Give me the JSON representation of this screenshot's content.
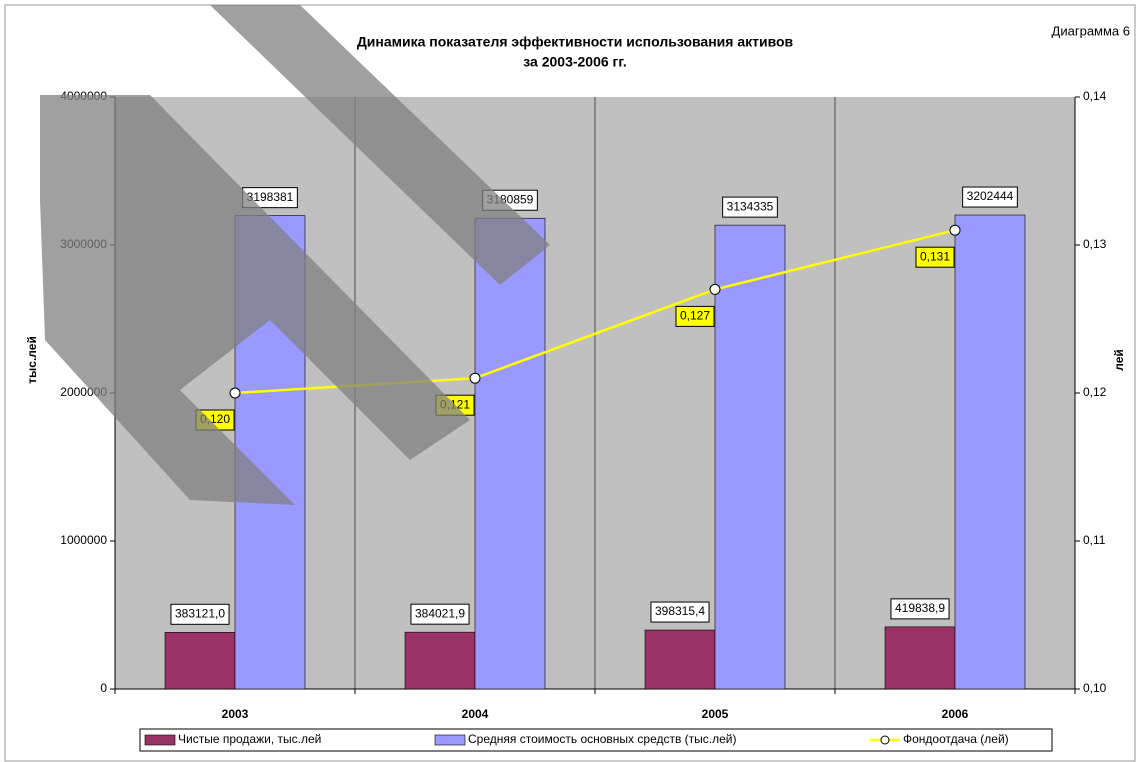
{
  "chart_data": {
    "type": "bar",
    "title": "Динамика показателя эффективности использования активов",
    "subtitle": "за 2003-2006 гг.",
    "annotation": "Диаграмма 6",
    "ylabel": "тыс.лей",
    "y2label": "лей",
    "categories": [
      "2003",
      "2004",
      "2005",
      "2006"
    ],
    "series": [
      {
        "name": "Чистые продажи, тыс.лей",
        "color": "#993366",
        "type": "bar",
        "values": [
          383121.0,
          384021.9,
          398315.4,
          419838.9
        ],
        "value_labels": [
          "383121,0",
          "384021,9",
          "398315,4",
          "419838,9"
        ]
      },
      {
        "name": "Средняя стоимость основных средств (тыс.лей)",
        "color": "#9999ff",
        "type": "bar",
        "values": [
          3198381,
          3180859,
          3134335,
          3202444
        ]
      },
      {
        "name": "Фондоотдача (лей)",
        "color": "#ffff00",
        "type": "line",
        "axis": "y2",
        "values": [
          0.12,
          0.121,
          0.127,
          0.131
        ],
        "value_labels": [
          "0,120",
          "0,121",
          "0,127",
          "0,131"
        ]
      }
    ],
    "ylim": [
      0,
      4000000
    ],
    "yticks": [
      0,
      1000000,
      2000000,
      3000000,
      4000000
    ],
    "y2lim": [
      0.1,
      0.14
    ],
    "y2ticks": [
      {
        "value": 0.1,
        "label": "0,10"
      },
      {
        "value": 0.11,
        "label": "0,11"
      },
      {
        "value": 0.12,
        "label": "0,12"
      },
      {
        "value": 0.13,
        "label": "0,13"
      },
      {
        "value": 0.14,
        "label": "0,14"
      }
    ],
    "legend": "bottom"
  }
}
